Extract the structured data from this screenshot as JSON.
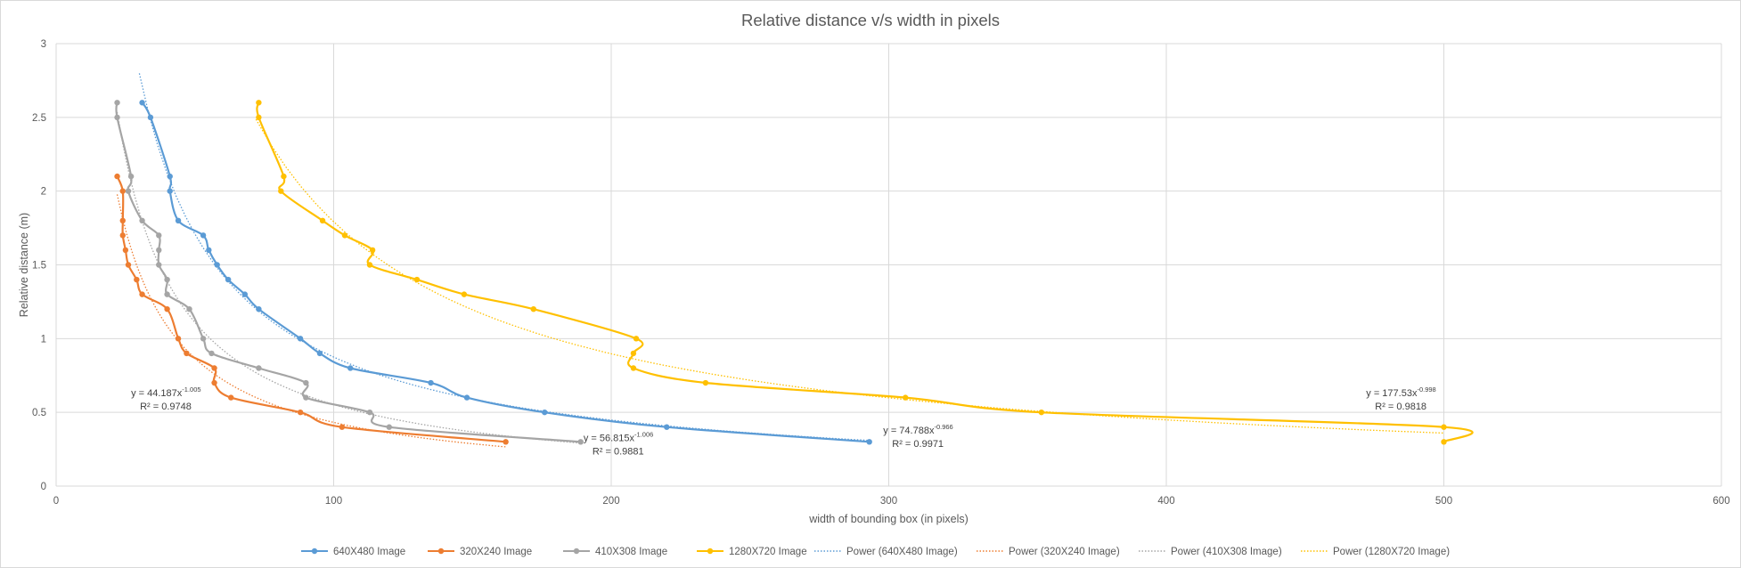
{
  "chart_data": {
    "type": "line",
    "title": "Relative distance v/s width in pixels",
    "xlabel": "width of bounding box (in pixels)",
    "ylabel": "Relative distance (m)",
    "xlim": [
      0,
      600
    ],
    "ylim": [
      0,
      3
    ],
    "x_ticks": [
      "0",
      "100",
      "200",
      "300",
      "400",
      "500",
      "600"
    ],
    "y_ticks": [
      "0",
      "0.5",
      "1",
      "1.5",
      "2",
      "2.5",
      "3"
    ],
    "grid": true,
    "legend_position": "bottom",
    "series": [
      {
        "name": "640X480 Image",
        "color": "#5b9bd5",
        "points": [
          [
            31,
            2.6
          ],
          [
            34,
            2.5
          ],
          [
            41,
            2.1
          ],
          [
            41,
            2.0
          ],
          [
            44,
            1.8
          ],
          [
            53,
            1.7
          ],
          [
            55,
            1.6
          ],
          [
            58,
            1.5
          ],
          [
            62,
            1.4
          ],
          [
            68,
            1.3
          ],
          [
            73,
            1.2
          ],
          [
            88,
            1.0
          ],
          [
            95,
            0.9
          ],
          [
            106,
            0.8
          ],
          [
            135,
            0.7
          ],
          [
            148,
            0.6
          ],
          [
            176,
            0.5
          ],
          [
            220,
            0.4
          ],
          [
            293,
            0.3
          ]
        ]
      },
      {
        "name": "320X240 Image",
        "color": "#ed7d31",
        "points": [
          [
            22,
            2.1
          ],
          [
            24,
            2.0
          ],
          [
            24,
            1.8
          ],
          [
            24,
            1.7
          ],
          [
            25,
            1.6
          ],
          [
            26,
            1.5
          ],
          [
            29,
            1.4
          ],
          [
            31,
            1.3
          ],
          [
            40,
            1.2
          ],
          [
            44,
            1.0
          ],
          [
            47,
            0.9
          ],
          [
            57,
            0.8
          ],
          [
            57,
            0.7
          ],
          [
            63,
            0.6
          ],
          [
            88,
            0.5
          ],
          [
            103,
            0.4
          ],
          [
            162,
            0.3
          ]
        ]
      },
      {
        "name": "410X308 Image",
        "color": "#a5a5a5",
        "points": [
          [
            22,
            2.6
          ],
          [
            22,
            2.5
          ],
          [
            27,
            2.1
          ],
          [
            26,
            2.0
          ],
          [
            31,
            1.8
          ],
          [
            37,
            1.7
          ],
          [
            37,
            1.6
          ],
          [
            37,
            1.5
          ],
          [
            40,
            1.4
          ],
          [
            40,
            1.3
          ],
          [
            48,
            1.2
          ],
          [
            53,
            1.0
          ],
          [
            56,
            0.9
          ],
          [
            73,
            0.8
          ],
          [
            90,
            0.7
          ],
          [
            90,
            0.6
          ],
          [
            113,
            0.5
          ],
          [
            120,
            0.4
          ],
          [
            189,
            0.3
          ]
        ]
      },
      {
        "name": "1280X720 Image",
        "color": "#ffc000",
        "points": [
          [
            73,
            2.6
          ],
          [
            73,
            2.5
          ],
          [
            82,
            2.1
          ],
          [
            81,
            2.0
          ],
          [
            96,
            1.8
          ],
          [
            104,
            1.7
          ],
          [
            114,
            1.6
          ],
          [
            113,
            1.5
          ],
          [
            130,
            1.4
          ],
          [
            147,
            1.3
          ],
          [
            172,
            1.2
          ],
          [
            209,
            1.0
          ],
          [
            208,
            0.9
          ],
          [
            208,
            0.8
          ],
          [
            234,
            0.7
          ],
          [
            306,
            0.6
          ],
          [
            355,
            0.5
          ],
          [
            500,
            0.4
          ],
          [
            500,
            0.3
          ]
        ]
      }
    ],
    "trendlines": [
      {
        "name": "Power (640X480 Image)",
        "series": "640X480 Image",
        "color": "#5b9bd5",
        "a": 74.788,
        "b": -0.966,
        "x_range": [
          30,
          293
        ]
      },
      {
        "name": "Power (320X240 Image)",
        "series": "320X240 Image",
        "color": "#ed7d31",
        "a": 44.187,
        "b": -1.005,
        "x_range": [
          22,
          162
        ]
      },
      {
        "name": "Power (410X308 Image)",
        "series": "410X308 Image",
        "color": "#a5a5a5",
        "a": 56.815,
        "b": -1.006,
        "x_range": [
          22,
          189
        ]
      },
      {
        "name": "Power (1280X720 Image)",
        "series": "1280X720 Image",
        "color": "#ffc000",
        "a": 177.53,
        "b": -0.998,
        "x_range": [
          72,
          500
        ]
      }
    ],
    "annotations": [
      {
        "equation_prefix": "y = 44.187x",
        "exponent": "-1.005",
        "r2": "R² = 0.9748",
        "x": 27,
        "y": 0.61
      },
      {
        "equation_prefix": "y = 56.815x",
        "exponent": "-1.006",
        "r2": "R² = 0.9881",
        "x": 190,
        "y": 0.305
      },
      {
        "equation_prefix": "y = 74.788x",
        "exponent": "-0.966",
        "r2": "R² = 0.9971",
        "x": 298,
        "y": 0.355
      },
      {
        "equation_prefix": "y = 177.53x",
        "exponent": "-0.998",
        "r2": "R² = 0.9818",
        "x": 472,
        "y": 0.61
      }
    ]
  }
}
